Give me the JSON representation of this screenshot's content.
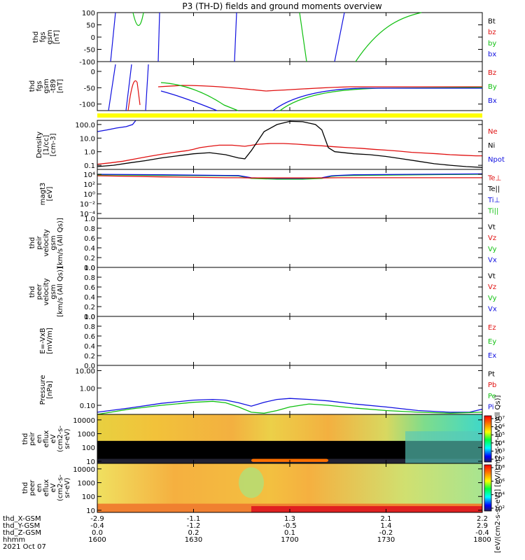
{
  "title": "P3 (TH-D) fields and ground moments overview",
  "colors": {
    "black": "#000000",
    "red": "#e01010",
    "green": "#10c010",
    "blue": "#1010e0",
    "yellow": "#ffff00",
    "magenta": "#aa00aa"
  },
  "chart_data": [
    {
      "type": "line",
      "id": "fgs",
      "ylabel_lines": [
        "thd",
        "fgs",
        "gsm",
        "[nT]"
      ],
      "ylim": [
        -100,
        100
      ],
      "yticks": [
        "100",
        "50",
        "0",
        "-50",
        "-100"
      ],
      "legend": [
        {
          "name": "Bt",
          "color": "black"
        },
        {
          "name": "bz",
          "color": "red"
        },
        {
          "name": "by",
          "color": "green"
        },
        {
          "name": "bx",
          "color": "blue"
        }
      ]
    },
    {
      "type": "line",
      "id": "fgs_sub",
      "ylabel_lines": [
        "thd",
        "fgs",
        "gsm",
        "-t89",
        "[nT]"
      ],
      "ylim": [
        -120,
        30
      ],
      "yticks": [
        "0",
        "-50",
        "-100"
      ],
      "legend": [
        {
          "name": "Bz",
          "color": "red"
        },
        {
          "name": "By",
          "color": "green"
        },
        {
          "name": "Bx",
          "color": "blue"
        }
      ]
    },
    {
      "type": "line",
      "id": "density",
      "ylabel_lines": [
        "Density",
        "[1/cc]",
        "[cm-3]"
      ],
      "scale": "log",
      "ylim": [
        0.05,
        200
      ],
      "yticks": [
        "100.0",
        "10.0",
        "1.0",
        "0.1"
      ],
      "legend": [
        {
          "name": "Ne",
          "color": "red"
        },
        {
          "name": "Ni",
          "color": "black"
        },
        {
          "name": "Npot",
          "color": "blue"
        }
      ],
      "series": [
        {
          "name": "Ne",
          "x": [
            0,
            4,
            8,
            12,
            16,
            20,
            24,
            28,
            30,
            32,
            35,
            38,
            42,
            46,
            50,
            54,
            58,
            62,
            66,
            70,
            74,
            78,
            82,
            86,
            90,
            94,
            98,
            102,
            106,
            110,
            114,
            118,
            120
          ],
          "y": [
            0.12,
            0.15,
            0.2,
            0.3,
            0.45,
            0.65,
            0.9,
            1.2,
            1.5,
            2.0,
            2.5,
            3.0,
            3.0,
            2.5,
            3.5,
            4.0,
            4.0,
            3.6,
            3.1,
            2.7,
            2.3,
            2.0,
            1.8,
            1.5,
            1.3,
            1.1,
            0.9,
            0.8,
            0.7,
            0.6,
            0.55,
            0.5,
            0.5
          ]
        },
        {
          "name": "Ni",
          "x": [
            0,
            5,
            10,
            15,
            20,
            25,
            30,
            35,
            40,
            44,
            46,
            48,
            52,
            56,
            60,
            64,
            68,
            70,
            72,
            74,
            80,
            85,
            90,
            95,
            100,
            105,
            110,
            115,
            120
          ],
          "y": [
            0.08,
            0.1,
            0.15,
            0.22,
            0.35,
            0.5,
            0.7,
            0.85,
            0.6,
            0.35,
            0.3,
            1.2,
            30,
            100,
            170,
            160,
            100,
            40,
            2.0,
            1.0,
            0.7,
            0.6,
            0.45,
            0.3,
            0.2,
            0.13,
            0.1,
            0.08,
            0.07
          ]
        },
        {
          "name": "Npot",
          "x": [
            0,
            3,
            6,
            9,
            11,
            12
          ],
          "y": [
            30,
            40,
            55,
            70,
            100,
            200
          ]
        }
      ]
    },
    {
      "type": "line",
      "id": "temp",
      "ylabel_lines": [
        "magt3",
        "[eV]"
      ],
      "scale": "log",
      "ylim": [
        1e-05,
        100000
      ],
      "yticks": [
        "10⁴",
        "10²",
        "10⁰",
        "10⁻²",
        "10⁻⁴"
      ],
      "legend": [
        {
          "name": "Te⊥",
          "color": "red"
        },
        {
          "name": "Te||",
          "color": "black"
        },
        {
          "name": "Ti⊥",
          "color": "blue"
        },
        {
          "name": "Ti||",
          "color": "green"
        }
      ],
      "series": [
        {
          "name": "Ti||",
          "x": [
            0,
            20,
            40,
            44,
            48,
            56,
            64,
            70,
            73,
            75,
            80,
            100,
            120
          ],
          "y": [
            8000,
            6000,
            5000,
            4500,
            1500,
            1000,
            1000,
            1500,
            4000,
            5000,
            6000,
            8000,
            10000
          ]
        },
        {
          "name": "Ti⊥",
          "x": [
            0,
            20,
            40,
            44,
            48,
            56,
            64,
            70,
            73,
            75,
            80,
            100,
            120
          ],
          "y": [
            10000,
            8000,
            6000,
            5500,
            2000,
            1500,
            1500,
            2000,
            5000,
            6000,
            8000,
            10000,
            12000
          ]
        },
        {
          "name": "Te⊥",
          "x": [
            0,
            20,
            40,
            44,
            48,
            56,
            64,
            70,
            75,
            80,
            100,
            120
          ],
          "y": [
            5000,
            3000,
            2000,
            2000,
            1800,
            1800,
            1800,
            1800,
            2000,
            2000,
            2000,
            2000
          ]
        }
      ]
    },
    {
      "type": "line",
      "id": "vpeir",
      "ylabel_lines": [
        "thd",
        "peir",
        "velocity",
        "gsm",
        "[km/s (All Qs)]"
      ],
      "ylim": [
        0,
        1
      ],
      "yticks": [
        "1.0",
        "0.8",
        "0.6",
        "0.4",
        "0.2",
        "0.0"
      ],
      "legend": [
        {
          "name": "Vt",
          "color": "black"
        },
        {
          "name": "Vz",
          "color": "red"
        },
        {
          "name": "Vy",
          "color": "green"
        },
        {
          "name": "Vx",
          "color": "blue"
        }
      ]
    },
    {
      "type": "line",
      "id": "vpeer",
      "ylabel_lines": [
        "thd",
        "peer",
        "velocity",
        "gsm",
        "[km/s (All Qs)]"
      ],
      "ylim": [
        0,
        1
      ],
      "yticks": [
        "1.0",
        "0.8",
        "0.6",
        "0.4",
        "0.2",
        "0.0"
      ],
      "legend": [
        {
          "name": "Vt",
          "color": "black"
        },
        {
          "name": "Vz",
          "color": "red"
        },
        {
          "name": "Vy",
          "color": "green"
        },
        {
          "name": "Vx",
          "color": "blue"
        }
      ]
    },
    {
      "type": "line",
      "id": "efield",
      "ylabel_lines": [
        "E=-VxB",
        "[mV/m]"
      ],
      "ylim": [
        0,
        1
      ],
      "yticks": [
        "1.0",
        "0.8",
        "0.6",
        "0.4",
        "0.2",
        "0.0"
      ],
      "legend": [
        {
          "name": "Ez",
          "color": "red"
        },
        {
          "name": "Ey",
          "color": "green"
        },
        {
          "name": "Ex",
          "color": "blue"
        }
      ]
    },
    {
      "type": "line",
      "id": "pressure",
      "ylabel_lines": [
        "Pressure",
        "[nPa]"
      ],
      "scale": "log",
      "ylim": [
        0.03,
        20
      ],
      "yticks": [
        "10.00",
        "1.00",
        "0.10"
      ],
      "legend": [
        {
          "name": "Pt",
          "color": "black"
        },
        {
          "name": "Pb",
          "color": "red"
        },
        {
          "name": "Pe",
          "color": "green"
        },
        {
          "name": "Pi",
          "color": "blue"
        }
      ],
      "series": [
        {
          "name": "Pi",
          "x": [
            0,
            10,
            20,
            30,
            36,
            40,
            44,
            48,
            52,
            56,
            60,
            66,
            72,
            80,
            90,
            100,
            110,
            116,
            120
          ],
          "y": [
            0.04,
            0.07,
            0.13,
            0.2,
            0.22,
            0.2,
            0.14,
            0.09,
            0.15,
            0.22,
            0.25,
            0.22,
            0.18,
            0.12,
            0.08,
            0.05,
            0.04,
            0.04,
            0.06
          ]
        },
        {
          "name": "Pe",
          "x": [
            0,
            10,
            20,
            30,
            36,
            40,
            44,
            48,
            52,
            56,
            60,
            66,
            72,
            80,
            90,
            100,
            110,
            120
          ],
          "y": [
            0.03,
            0.06,
            0.1,
            0.15,
            0.17,
            0.14,
            0.08,
            0.04,
            0.035,
            0.05,
            0.08,
            0.12,
            0.1,
            0.07,
            0.05,
            0.04,
            0.035,
            0.04
          ]
        }
      ]
    },
    {
      "type": "heatmap",
      "id": "peir_spec",
      "ylabel_lines": [
        "thd",
        "peir",
        "en",
        "eflux",
        "eV",
        "(cm2-s-",
        "sr-eV)"
      ],
      "scale": "log",
      "ylim": [
        7,
        25000
      ],
      "yticks": [
        "10000",
        "1000",
        "100",
        "10"
      ]
    },
    {
      "type": "heatmap",
      "id": "peer_spec",
      "ylabel_lines": [
        "thd",
        "peer",
        "en",
        "eflux",
        "eV",
        "(cm2-s-",
        "sr-eV)"
      ],
      "scale": "log",
      "ylim": [
        7,
        25000
      ],
      "yticks": [
        "10000",
        "1000",
        "100",
        "10"
      ]
    }
  ],
  "colorbars": [
    {
      "ticks": [
        "10⁷",
        "10⁶",
        "10⁵",
        "10⁴",
        "10³",
        "10²"
      ]
    },
    {
      "ticks": [
        "10⁸",
        "10⁶",
        "10⁴",
        "10²"
      ]
    }
  ],
  "colorbar_label": "[eV/(cm2-s-sr-eV)] [eV/(cm2-s-sr-eV) (All Qs)]",
  "xaxis": {
    "row_labels": [
      "thd_X-GSM",
      "thd_Y-GSM",
      "thd_Z-GSM",
      "hhmm",
      "2021 Oct 07"
    ],
    "ticks": [
      {
        "t": 0,
        "vals": [
          "-2.9",
          "-0.4",
          "0.0",
          "1600"
        ]
      },
      {
        "t": 30,
        "vals": [
          "-1.1",
          "-1.2",
          "0.2",
          "1630"
        ]
      },
      {
        "t": 60,
        "vals": [
          "1.3",
          "-0.5",
          "0.1",
          "1700"
        ]
      },
      {
        "t": 90,
        "vals": [
          "2.1",
          "1.4",
          "-0.2",
          "1730"
        ]
      },
      {
        "t": 120,
        "vals": [
          "2.2",
          "2.9",
          "-0.4",
          "1800"
        ]
      }
    ]
  }
}
